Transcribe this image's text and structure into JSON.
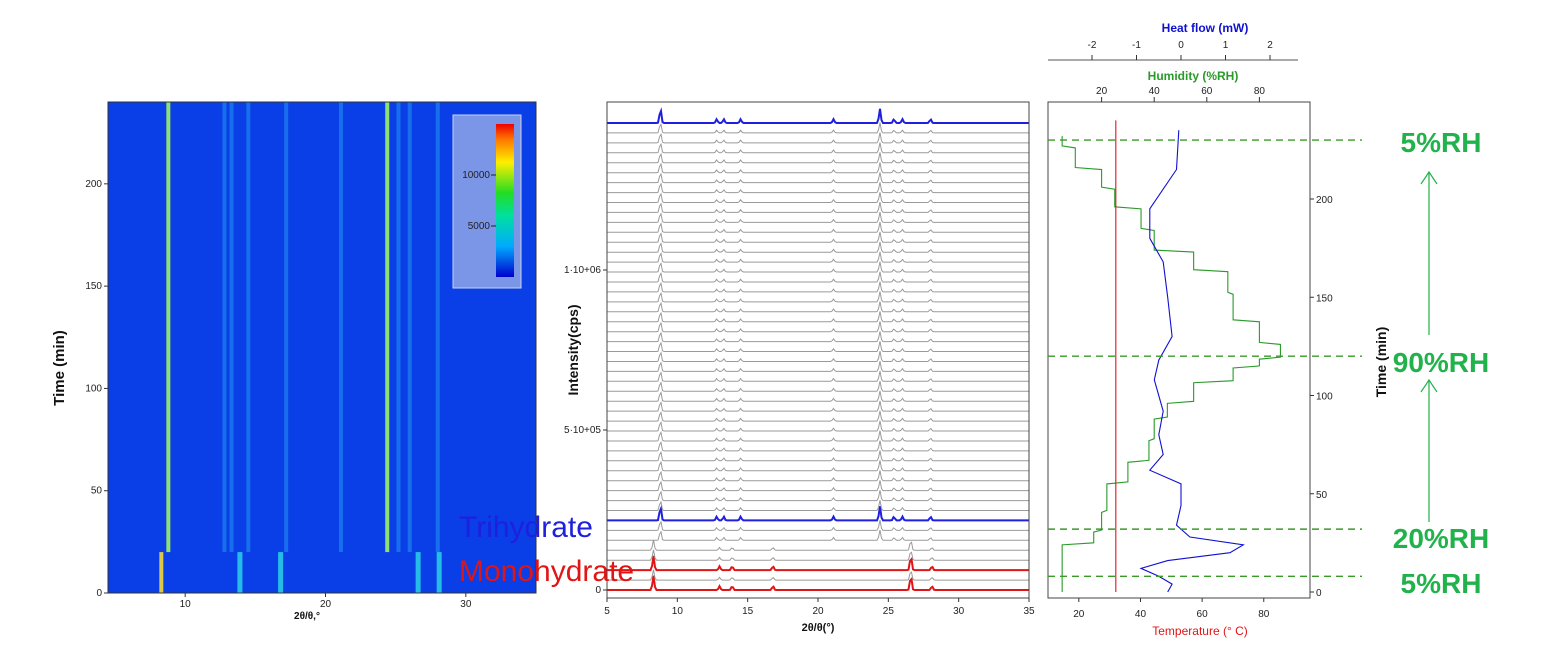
{
  "colors": {
    "trihydrate": "#1f1fe0",
    "monohydrate": "#e01515",
    "humidity": "#2a9a2a",
    "heatflow": "#1010d0",
    "temperature": "#e01515",
    "rh_label": "#22b24c",
    "heatmap_bg": "#0a3ee6",
    "pattern_gray": "#9a9a9a"
  },
  "chart_data": [
    {
      "type": "heatmap",
      "panel": "left",
      "xlabel": "2θ/θ,°",
      "ylabel": "Time (min)",
      "xlim": [
        4.5,
        35
      ],
      "ylim": [
        0,
        240
      ],
      "xticks": [
        "10",
        "20",
        "30"
      ],
      "yticks": [
        "0",
        "50",
        "100",
        "150",
        "200"
      ],
      "colorbar_ticks": [
        "5000",
        "10000"
      ],
      "colorbar_range": [
        0,
        15000
      ],
      "trihydrate_peaks_2theta": [
        8.8,
        12.8,
        13.3,
        14.5,
        17.2,
        21.1,
        24.4,
        25.2,
        26.0,
        28.0
      ],
      "monohydrate_peaks_2theta": [
        8.3,
        13.9,
        16.8,
        26.6,
        28.1
      ],
      "monohydrate_time_ranges_min": [
        [
          0,
          20
        ]
      ],
      "trihydrate_time_ranges_min": [
        [
          20,
          240
        ]
      ]
    },
    {
      "type": "line",
      "panel": "middle",
      "xlabel": "2θ/θ(°)",
      "ylabel": "Intensity(cps)",
      "xlim": [
        5,
        35
      ],
      "xticks": [
        "5",
        "10",
        "15",
        "20",
        "25",
        "30",
        "35"
      ],
      "ytick_labels": [
        "0",
        "5·10+05",
        "1·10+06"
      ],
      "ytick_values": [
        0,
        500000,
        1000000
      ],
      "series": [
        {
          "name": "Trihydrate",
          "peaks_2theta": [
            8.8,
            12.8,
            13.3,
            14.5,
            21.1,
            24.4,
            25.4,
            26.0,
            28.0
          ]
        },
        {
          "name": "Monohydrate",
          "peaks_2theta": [
            8.3,
            13.0,
            13.9,
            16.8,
            26.6,
            28.1
          ]
        }
      ],
      "stack_count": 48,
      "highlighted_patterns": [
        "Monohydrate",
        "Monohydrate",
        "Trihydrate",
        "Trihydrate"
      ]
    },
    {
      "type": "line",
      "panel": "right",
      "xlabel": "Temperature (° C)",
      "ylabel": "Time (min)",
      "top_axis_1_label": "Heat flow (mW)",
      "top_axis_2_label": "Humidity (%RH)",
      "temperature_ticks": [
        "20",
        "40",
        "60",
        "80"
      ],
      "temperature_lim": [
        10,
        95
      ],
      "humidity_ticks": [
        "20",
        "40",
        "60",
        "80"
      ],
      "heatflow_ticks": [
        "-2",
        "-1",
        "0",
        "1",
        "2"
      ],
      "heatflow_lim": [
        -3,
        2.5
      ],
      "time_ticks": [
        "0",
        "50",
        "100",
        "150",
        "200"
      ],
      "time_lim": [
        0,
        250
      ],
      "series": [
        {
          "name": "Humidity",
          "points": [
            [
              0,
              5
            ],
            [
              10,
              5
            ],
            [
              12,
              5
            ],
            [
              20,
              5
            ],
            [
              28,
              17
            ],
            [
              33,
              20
            ],
            [
              48,
              22
            ],
            [
              62,
              30
            ],
            [
              70,
              38
            ],
            [
              84,
              40
            ],
            [
              92,
              45
            ],
            [
              100,
              55
            ],
            [
              113,
              70
            ],
            [
              115,
              80
            ],
            [
              122,
              88
            ],
            [
              130,
              80
            ],
            [
              145,
              70
            ],
            [
              158,
              68
            ],
            [
              168,
              55
            ],
            [
              178,
              40
            ],
            [
              190,
              35
            ],
            [
              200,
              25
            ],
            [
              210,
              20
            ],
            [
              220,
              10
            ],
            [
              232,
              5
            ]
          ]
        },
        {
          "name": "Heat flow",
          "points": [
            [
              0,
              -0.3
            ],
            [
              4,
              -0.2
            ],
            [
              8,
              -0.5
            ],
            [
              12,
              -0.9
            ],
            [
              16,
              -0.3
            ],
            [
              20,
              1.1
            ],
            [
              24,
              1.4
            ],
            [
              28,
              0.2
            ],
            [
              34,
              -0.1
            ],
            [
              44,
              0.0
            ],
            [
              55,
              0.0
            ],
            [
              62,
              -0.7
            ],
            [
              70,
              -0.4
            ],
            [
              80,
              -0.5
            ],
            [
              92,
              -0.4
            ],
            [
              108,
              -0.6
            ],
            [
              118,
              -0.5
            ],
            [
              130,
              -0.2
            ],
            [
              150,
              -0.3
            ],
            [
              168,
              -0.4
            ],
            [
              180,
              -0.7
            ],
            [
              195,
              -0.7
            ],
            [
              215,
              -0.1
            ],
            [
              235,
              -0.05
            ]
          ]
        },
        {
          "name": "Temperature",
          "points": [
            [
              0,
              32
            ],
            [
              240,
              32
            ]
          ]
        }
      ],
      "rh_markers": [
        {
          "label": "5%RH",
          "time": 230
        },
        {
          "label": "90%RH",
          "time": 120
        },
        {
          "label": "20%RH",
          "time": 32
        },
        {
          "label": "5%RH",
          "time": 8
        }
      ]
    }
  ]
}
